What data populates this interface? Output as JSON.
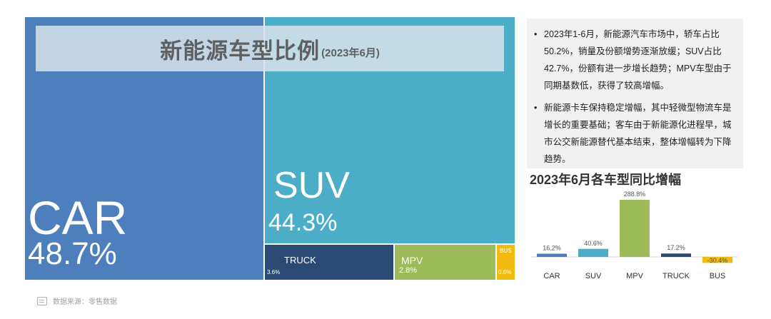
{
  "treemap": {
    "title": "新能源车型比例",
    "subtitle": "(2023年6月)",
    "colors": {
      "CAR": "#4e7fbd",
      "SUV": "#4badc8",
      "TRUCK": "#2a4a73",
      "MPV": "#9dbb58",
      "BUS": "#f2bb12"
    },
    "segments": {
      "car": {
        "name": "CAR",
        "pct": "48.7%"
      },
      "suv": {
        "name": "SUV",
        "pct": "44.3%"
      },
      "truck": {
        "name": "TRUCK",
        "pct": "3.6%"
      },
      "mpv": {
        "name": "MPV",
        "pct": "2.8%"
      },
      "bus": {
        "name": "BUS",
        "pct": "0.6%"
      }
    }
  },
  "notes": [
    "2023年1-6月，新能源汽车市场中，轿车占比50.2%，销量及份额增势逐渐放缓；SUV占比42.7%，份额有进一步增长趋势；MPV车型由于同期基数低，获得了较高增幅。",
    "新能源卡车保持稳定增幅，其中轻微型物流车是增长的重要基础；客车由于新能源化进程早，城市公交新能源替代基本结束，整体增幅转为下降趋势。"
  ],
  "source": "数据来源：零售数据",
  "chart_data": [
    {
      "type": "treemap",
      "title": "新能源车型比例",
      "subtitle": "(2023年6月)",
      "categories": [
        "CAR",
        "SUV",
        "TRUCK",
        "MPV",
        "BUS"
      ],
      "values": [
        48.7,
        44.3,
        3.6,
        2.8,
        0.6
      ],
      "unit": "%"
    },
    {
      "type": "bar",
      "title": "2023年6月各车型同比增幅",
      "categories": [
        "CAR",
        "SUV",
        "MPV",
        "TRUCK",
        "BUS"
      ],
      "values": [
        16.2,
        40.6,
        288.8,
        17.2,
        -30.4
      ],
      "labels": [
        "16.2%",
        "40.6%",
        "288.8%",
        "17.2%",
        "-30.4%"
      ],
      "colors": [
        "#4e7fbd",
        "#4badc8",
        "#9dbb58",
        "#2a4a73",
        "#f2bb12"
      ],
      "grid": false
    }
  ]
}
